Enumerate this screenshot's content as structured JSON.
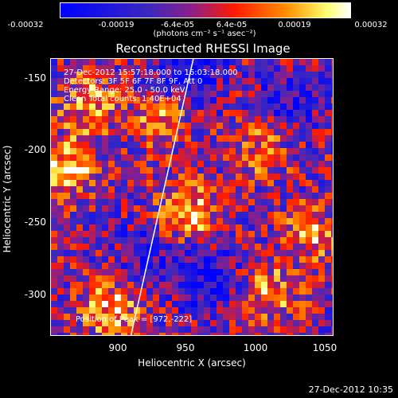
{
  "colorbar": {
    "ticks": [
      "-0.00032",
      "-0.00019",
      "-6.4e-05",
      "6.4e-05",
      "0.00019",
      "0.00032"
    ],
    "unit_label": "(photons cm⁻² s⁻¹ asec⁻²)",
    "vmin": -0.00032,
    "vmax": 0.00032
  },
  "chart_data": {
    "type": "heatmap",
    "title": "Reconstructed RHESSI Image",
    "xlabel": "Heliocentric X (arcsec)",
    "ylabel": "Heliocentric Y (arcsec)",
    "xlim": [
      864,
      1054
    ],
    "ylim": [
      -328,
      -140
    ],
    "xticks": [
      900,
      950,
      1000,
      1050
    ],
    "yticks": [
      -150,
      -200,
      -250,
      -300
    ],
    "colormap": [
      "#0000ff",
      "#5a3fa0",
      "#ff0000",
      "#ff8000",
      "#ffff80",
      "#ffffff"
    ],
    "peak": [
      972,
      -222
    ],
    "limb_line": [
      [
        918,
        -328
      ],
      [
        960,
        -140
      ]
    ],
    "hotspots": [
      {
        "x": 875,
        "y": -215,
        "level": 0.95
      },
      {
        "x": 890,
        "y": -170,
        "level": 0.8
      },
      {
        "x": 955,
        "y": -245,
        "level": 0.98
      },
      {
        "x": 905,
        "y": -310,
        "level": 0.85
      },
      {
        "x": 1010,
        "y": -300,
        "level": 0.75
      },
      {
        "x": 1040,
        "y": -260,
        "level": 0.7
      },
      {
        "x": 1005,
        "y": -200,
        "level": 0.65
      },
      {
        "x": 940,
        "y": -180,
        "level": 0.7
      }
    ],
    "coldspots": [
      {
        "x": 955,
        "y": -150,
        "level": 0.9
      },
      {
        "x": 970,
        "y": -290,
        "level": 0.75
      },
      {
        "x": 1025,
        "y": -170,
        "level": 0.6
      },
      {
        "x": 930,
        "y": -270,
        "level": 0.5
      }
    ]
  },
  "annotations": {
    "time_range": "27-Dec-2012 15:57:18.000 to 16:03:18.000",
    "detectors": "Detectors: 3F 5F 6F 7F 8F 9F, Att 0",
    "energy": "Energy Range: 25.0 - 50.0 keV",
    "method": "Clean    Total counts: 1.40E+04",
    "peak": "Position of Peak = [972,-222]"
  },
  "timestamp": "27-Dec-2012 10:35"
}
